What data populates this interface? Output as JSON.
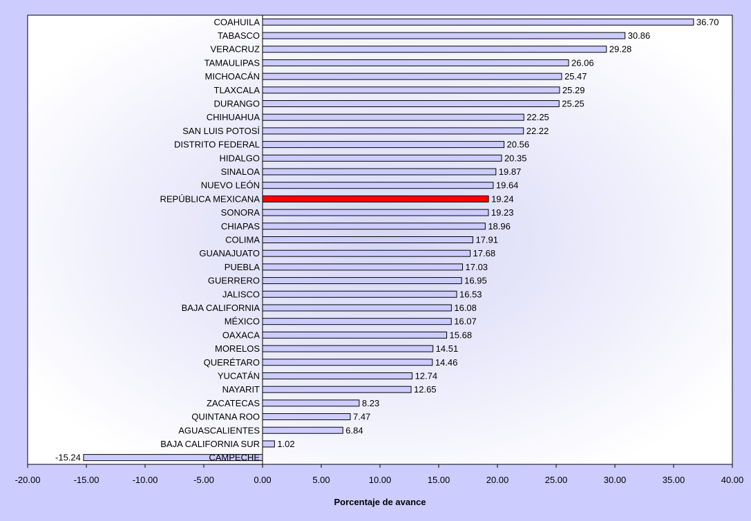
{
  "chart_data": {
    "type": "bar",
    "orientation": "horizontal",
    "title": "",
    "xlabel": "Porcentaje de avance",
    "ylabel": "",
    "xlim": [
      -20,
      40
    ],
    "x_ticks": [
      "-20.00",
      "-15.00",
      "-10.00",
      "-5.00",
      "0.00",
      "5.00",
      "10.00",
      "15.00",
      "20.00",
      "25.00",
      "30.00",
      "35.00",
      "40.00"
    ],
    "grid": false,
    "legend": "none",
    "colors": {
      "bar_fill": "#ccccff",
      "highlight_fill": "#ff0000",
      "bar_stroke": "#000000",
      "background": "#ccccff",
      "plot_background": "#ffffff"
    },
    "bars": [
      {
        "label": "COAHUILA",
        "value": 36.7,
        "value_label": "36.70"
      },
      {
        "label": "TABASCO",
        "value": 30.86,
        "value_label": "30.86"
      },
      {
        "label": "VERACRUZ",
        "value": 29.28,
        "value_label": "29.28"
      },
      {
        "label": "TAMAULIPAS",
        "value": 26.06,
        "value_label": "26.06"
      },
      {
        "label": "MICHOACÁN",
        "value": 25.47,
        "value_label": "25.47"
      },
      {
        "label": "TLAXCALA",
        "value": 25.29,
        "value_label": "25.29"
      },
      {
        "label": "DURANGO",
        "value": 25.25,
        "value_label": "25.25"
      },
      {
        "label": "CHIHUAHUA",
        "value": 22.25,
        "value_label": "22.25"
      },
      {
        "label": "SAN LUIS POTOSÍ",
        "value": 22.22,
        "value_label": "22.22"
      },
      {
        "label": "DISTRITO FEDERAL",
        "value": 20.56,
        "value_label": "20.56"
      },
      {
        "label": "HIDALGO",
        "value": 20.35,
        "value_label": "20.35"
      },
      {
        "label": "SINALOA",
        "value": 19.87,
        "value_label": "19.87"
      },
      {
        "label": "NUEVO LEÓN",
        "value": 19.64,
        "value_label": "19.64"
      },
      {
        "label": "REPÚBLICA MEXICANA",
        "value": 19.24,
        "value_label": "19.24",
        "highlight": true
      },
      {
        "label": "SONORA",
        "value": 19.23,
        "value_label": "19.23"
      },
      {
        "label": "CHIAPAS",
        "value": 18.96,
        "value_label": "18.96"
      },
      {
        "label": "COLIMA",
        "value": 17.91,
        "value_label": "17.91"
      },
      {
        "label": "GUANAJUATO",
        "value": 17.68,
        "value_label": "17.68"
      },
      {
        "label": "PUEBLA",
        "value": 17.03,
        "value_label": "17.03"
      },
      {
        "label": "GUERRERO",
        "value": 16.95,
        "value_label": "16.95"
      },
      {
        "label": "JALISCO",
        "value": 16.53,
        "value_label": "16.53"
      },
      {
        "label": "BAJA CALIFORNIA",
        "value": 16.08,
        "value_label": "16.08"
      },
      {
        "label": "MÉXICO",
        "value": 16.07,
        "value_label": "16.07"
      },
      {
        "label": "OAXACA",
        "value": 15.68,
        "value_label": "15.68"
      },
      {
        "label": "MORELOS",
        "value": 14.51,
        "value_label": "14.51"
      },
      {
        "label": "QUERÉTARO",
        "value": 14.46,
        "value_label": "14.46"
      },
      {
        "label": "YUCATÁN",
        "value": 12.74,
        "value_label": "12.74"
      },
      {
        "label": "NAYARIT",
        "value": 12.65,
        "value_label": "12.65"
      },
      {
        "label": "ZACATECAS",
        "value": 8.23,
        "value_label": "8.23"
      },
      {
        "label": "QUINTANA ROO",
        "value": 7.47,
        "value_label": "7.47"
      },
      {
        "label": "AGUASCALIENTES",
        "value": 6.84,
        "value_label": "6.84"
      },
      {
        "label": "BAJA CALIFORNIA SUR",
        "value": 1.02,
        "value_label": "1.02"
      },
      {
        "label": "CAMPECHE",
        "value": -15.24,
        "value_label": "-15.24"
      }
    ]
  }
}
